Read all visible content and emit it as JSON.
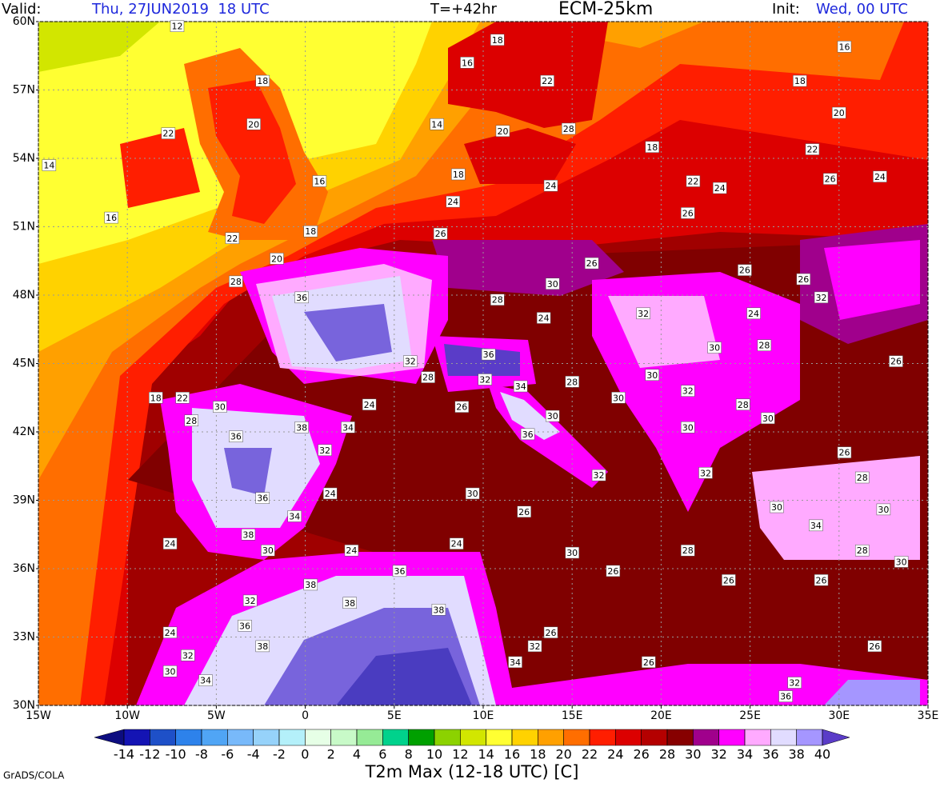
{
  "map": {
    "header": {
      "valid_label": "Valid:",
      "valid_time": "Thu, 27JUN2019  18 UTC",
      "forecast": "T=+42hr",
      "model": "ECM-25km",
      "init_label": "Init:",
      "init_time": "Wed, 00 UTC"
    },
    "title": "T2m Max (12-18 UTC) [C]",
    "credit": "GrADS/COLA",
    "xlim": [
      -15,
      35
    ],
    "ylim": [
      30,
      60
    ],
    "grid": true,
    "xticks": [
      {
        "value": -15,
        "label": "15W"
      },
      {
        "value": -10,
        "label": "10W"
      },
      {
        "value": -5,
        "label": "5W"
      },
      0,
      {
        "value": 5,
        "label": "5E"
      },
      {
        "value": 10,
        "label": "10E"
      },
      {
        "value": 15,
        "label": "15E"
      },
      {
        "value": 20,
        "label": "20E"
      },
      {
        "value": 25,
        "label": "25E"
      },
      {
        "value": 30,
        "label": "30E"
      },
      {
        "value": 35,
        "label": "35E"
      }
    ],
    "yticks": [
      {
        "value": 30,
        "label": "30N"
      },
      {
        "value": 33,
        "label": "33N"
      },
      {
        "value": 36,
        "label": "36N"
      },
      {
        "value": 39,
        "label": "39N"
      },
      {
        "value": 42,
        "label": "42N"
      },
      {
        "value": 45,
        "label": "45N"
      },
      {
        "value": 48,
        "label": "48N"
      },
      {
        "value": 51,
        "label": "51N"
      },
      {
        "value": 54,
        "label": "54N"
      },
      {
        "value": 57,
        "label": "57N"
      },
      {
        "value": 60,
        "label": "60N"
      }
    ],
    "colorbar": {
      "levels": [
        -14,
        -12,
        -10,
        -8,
        -6,
        -4,
        -2,
        0,
        2,
        4,
        6,
        8,
        10,
        12,
        14,
        16,
        18,
        20,
        22,
        24,
        26,
        28,
        30,
        32,
        34,
        36,
        38,
        40
      ],
      "colors": [
        "#0d0d80",
        "#1414b4",
        "#1e50c8",
        "#2d82eb",
        "#50a5f5",
        "#78b9fa",
        "#96d2fa",
        "#b4f0fa",
        "#e6ffe6",
        "#c8fac8",
        "#96eb96",
        "#00d28c",
        "#00a000",
        "#8cd200",
        "#d2e600",
        "#ffff32",
        "#ffd200",
        "#ffa000",
        "#ff6e00",
        "#ff1e00",
        "#dc0000",
        "#b40000",
        "#870000",
        "#a0008c",
        "#ff00ff",
        "#ffaaff",
        "#e1dcff",
        "#a596ff",
        "#5a3cc8"
      ]
    },
    "stations": [
      {
        "lon": -7.2,
        "lat": 59.8,
        "value": 12
      },
      {
        "lon": -2.4,
        "lat": 57.4,
        "value": 18
      },
      {
        "lon": -2.9,
        "lat": 55.5,
        "value": 20
      },
      {
        "lon": -7.7,
        "lat": 55.1,
        "value": 22
      },
      {
        "lon": -14.4,
        "lat": 53.7,
        "value": 14
      },
      {
        "lon": 0.8,
        "lat": 53.0,
        "value": 16
      },
      {
        "lon": -10.9,
        "lat": 51.4,
        "value": 16
      },
      {
        "lon": -4.1,
        "lat": 50.5,
        "value": 22
      },
      {
        "lon": 0.3,
        "lat": 50.8,
        "value": 18
      },
      {
        "lon": -1.6,
        "lat": 49.6,
        "value": 20
      },
      {
        "lon": -3.9,
        "lat": 48.6,
        "value": 28
      },
      {
        "lon": -0.2,
        "lat": 47.9,
        "value": 36
      },
      {
        "lon": 7.4,
        "lat": 55.5,
        "value": 14
      },
      {
        "lon": 9.1,
        "lat": 58.2,
        "value": 16
      },
      {
        "lon": 10.8,
        "lat": 59.2,
        "value": 18
      },
      {
        "lon": 13.6,
        "lat": 57.4,
        "value": 22
      },
      {
        "lon": 11.1,
        "lat": 55.2,
        "value": 20
      },
      {
        "lon": 14.8,
        "lat": 55.3,
        "value": 28
      },
      {
        "lon": 8.6,
        "lat": 53.3,
        "value": 18
      },
      {
        "lon": 8.3,
        "lat": 52.1,
        "value": 24
      },
      {
        "lon": 13.8,
        "lat": 52.8,
        "value": 24
      },
      {
        "lon": 19.5,
        "lat": 54.5,
        "value": 18
      },
      {
        "lon": 21.8,
        "lat": 53.0,
        "value": 22
      },
      {
        "lon": 23.3,
        "lat": 52.7,
        "value": 24
      },
      {
        "lon": 28.5,
        "lat": 54.4,
        "value": 22
      },
      {
        "lon": 32.3,
        "lat": 53.2,
        "value": 24
      },
      {
        "lon": 21.5,
        "lat": 51.6,
        "value": 26
      },
      {
        "lon": 30.0,
        "lat": 56.0,
        "value": 20
      },
      {
        "lon": 27.8,
        "lat": 57.4,
        "value": 18
      },
      {
        "lon": 30.3,
        "lat": 58.9,
        "value": 16
      },
      {
        "lon": 7.6,
        "lat": 50.7,
        "value": 26
      },
      {
        "lon": 16.1,
        "lat": 49.4,
        "value": 26
      },
      {
        "lon": 13.9,
        "lat": 48.5,
        "value": 30
      },
      {
        "lon": 10.8,
        "lat": 47.8,
        "value": 28
      },
      {
        "lon": 13.4,
        "lat": 47.0,
        "value": 24
      },
      {
        "lon": 19.0,
        "lat": 47.2,
        "value": 32
      },
      {
        "lon": 24.7,
        "lat": 49.1,
        "value": 26
      },
      {
        "lon": 28.0,
        "lat": 48.7,
        "value": 26
      },
      {
        "lon": 29.0,
        "lat": 47.9,
        "value": 32
      },
      {
        "lon": 25.2,
        "lat": 47.2,
        "value": 24
      },
      {
        "lon": 23.0,
        "lat": 45.7,
        "value": 30
      },
      {
        "lon": 25.8,
        "lat": 45.8,
        "value": 28
      },
      {
        "lon": 33.2,
        "lat": 45.1,
        "value": 26
      },
      {
        "lon": 10.3,
        "lat": 45.4,
        "value": 36
      },
      {
        "lon": 5.9,
        "lat": 45.1,
        "value": 32
      },
      {
        "lon": 6.9,
        "lat": 44.4,
        "value": 28
      },
      {
        "lon": 10.1,
        "lat": 44.3,
        "value": 32
      },
      {
        "lon": 12.1,
        "lat": 44.0,
        "value": 34
      },
      {
        "lon": 15.0,
        "lat": 44.2,
        "value": 28
      },
      {
        "lon": 19.5,
        "lat": 44.5,
        "value": 30
      },
      {
        "lon": 17.6,
        "lat": 43.5,
        "value": 30
      },
      {
        "lon": 21.5,
        "lat": 43.8,
        "value": 32
      },
      {
        "lon": 24.6,
        "lat": 43.2,
        "value": 28
      },
      {
        "lon": 26.0,
        "lat": 42.6,
        "value": 30
      },
      {
        "lon": 13.9,
        "lat": 42.7,
        "value": 30
      },
      {
        "lon": 12.5,
        "lat": 41.9,
        "value": 36
      },
      {
        "lon": 21.5,
        "lat": 42.2,
        "value": 30
      },
      {
        "lon": 30.3,
        "lat": 41.1,
        "value": 26
      },
      {
        "lon": 22.5,
        "lat": 40.2,
        "value": 32
      },
      {
        "lon": 31.3,
        "lat": 40.0,
        "value": 28
      },
      {
        "lon": 16.5,
        "lat": 40.1,
        "value": 32
      },
      {
        "lon": 8.8,
        "lat": 43.1,
        "value": 26
      },
      {
        "lon": 3.6,
        "lat": 43.2,
        "value": 24
      },
      {
        "lon": 2.4,
        "lat": 42.2,
        "value": 34
      },
      {
        "lon": -0.2,
        "lat": 42.2,
        "value": 38
      },
      {
        "lon": 1.1,
        "lat": 41.2,
        "value": 32
      },
      {
        "lon": -3.9,
        "lat": 41.8,
        "value": 36
      },
      {
        "lon": -8.4,
        "lat": 43.5,
        "value": 18
      },
      {
        "lon": -6.9,
        "lat": 43.5,
        "value": 22
      },
      {
        "lon": -4.8,
        "lat": 43.1,
        "value": 30
      },
      {
        "lon": -6.4,
        "lat": 42.5,
        "value": 28
      },
      {
        "lon": -2.4,
        "lat": 39.1,
        "value": 36
      },
      {
        "lon": -0.6,
        "lat": 38.3,
        "value": 34
      },
      {
        "lon": -3.2,
        "lat": 37.5,
        "value": 38
      },
      {
        "lon": 1.4,
        "lat": 39.3,
        "value": 24
      },
      {
        "lon": 9.4,
        "lat": 39.3,
        "value": 30
      },
      {
        "lon": 12.3,
        "lat": 38.5,
        "value": 26
      },
      {
        "lon": 26.5,
        "lat": 38.7,
        "value": 30
      },
      {
        "lon": 28.7,
        "lat": 37.9,
        "value": 34
      },
      {
        "lon": 32.5,
        "lat": 38.6,
        "value": 30
      },
      {
        "lon": 31.3,
        "lat": 36.8,
        "value": 28
      },
      {
        "lon": 33.5,
        "lat": 36.3,
        "value": 30
      },
      {
        "lon": 21.5,
        "lat": 36.8,
        "value": 28
      },
      {
        "lon": 23.8,
        "lat": 35.5,
        "value": 26
      },
      {
        "lon": 29.0,
        "lat": 35.5,
        "value": 26
      },
      {
        "lon": 17.3,
        "lat": 35.9,
        "value": 26
      },
      {
        "lon": 15.0,
        "lat": 36.7,
        "value": 30
      },
      {
        "lon": 8.5,
        "lat": 37.1,
        "value": 24
      },
      {
        "lon": 2.6,
        "lat": 36.8,
        "value": 24
      },
      {
        "lon": -2.1,
        "lat": 36.8,
        "value": 30
      },
      {
        "lon": -7.6,
        "lat": 37.1,
        "value": 24
      },
      {
        "lon": 0.3,
        "lat": 35.3,
        "value": 38
      },
      {
        "lon": 5.3,
        "lat": 35.9,
        "value": 36
      },
      {
        "lon": 2.5,
        "lat": 34.5,
        "value": 38
      },
      {
        "lon": 7.5,
        "lat": 34.2,
        "value": 38
      },
      {
        "lon": -3.4,
        "lat": 33.5,
        "value": 36
      },
      {
        "lon": -7.6,
        "lat": 33.2,
        "value": 24
      },
      {
        "lon": -2.4,
        "lat": 32.6,
        "value": 38
      },
      {
        "lon": -6.6,
        "lat": 32.2,
        "value": 32
      },
      {
        "lon": -7.6,
        "lat": 31.5,
        "value": 30
      },
      {
        "lon": -5.6,
        "lat": 31.1,
        "value": 34
      },
      {
        "lon": 12.9,
        "lat": 32.6,
        "value": 32
      },
      {
        "lon": 13.8,
        "lat": 33.2,
        "value": 26
      },
      {
        "lon": 11.8,
        "lat": 31.9,
        "value": 34
      },
      {
        "lon": 19.3,
        "lat": 31.9,
        "value": 26
      },
      {
        "lon": 32.0,
        "lat": 32.6,
        "value": 26
      },
      {
        "lon": 27.5,
        "lat": 31.0,
        "value": 32
      },
      {
        "lon": 27.0,
        "lat": 30.4,
        "value": 36
      },
      {
        "lon": -3.1,
        "lat": 34.6,
        "value": 32
      },
      {
        "lon": 29.5,
        "lat": 53.1,
        "value": 26
      }
    ]
  }
}
